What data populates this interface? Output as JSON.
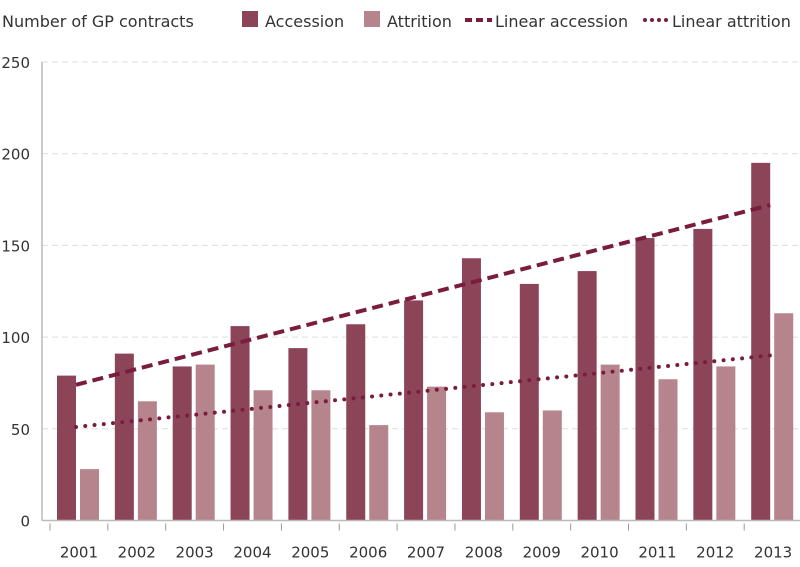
{
  "chart_data": {
    "type": "bar",
    "title": "",
    "ylabel": "Number of GP contracts",
    "xlabel": "",
    "ylim": [
      0,
      250
    ],
    "yticks": [
      0,
      50,
      100,
      150,
      200,
      250
    ],
    "grid": true,
    "legend_position": "top",
    "categories": [
      "2001",
      "2002",
      "2003",
      "2004",
      "2005",
      "2006",
      "2007",
      "2008",
      "2009",
      "2010",
      "2011",
      "2012",
      "2013"
    ],
    "series": [
      {
        "name": "Accession",
        "color": "#8c4458",
        "values": [
          79,
          91,
          84,
          106,
          94,
          107,
          120,
          143,
          129,
          136,
          154,
          159,
          195
        ]
      },
      {
        "name": "Attrition",
        "color": "#b5848c",
        "values": [
          28,
          65,
          85,
          71,
          71,
          52,
          73,
          59,
          60,
          85,
          77,
          84,
          113
        ]
      }
    ],
    "trendlines": [
      {
        "name": "Linear accession",
        "style": "dashed",
        "color": "#7a1c3e",
        "start": 74,
        "end": 172
      },
      {
        "name": "Linear attrition",
        "style": "dotted",
        "color": "#7a1c3e",
        "start": 51,
        "end": 90
      }
    ]
  }
}
